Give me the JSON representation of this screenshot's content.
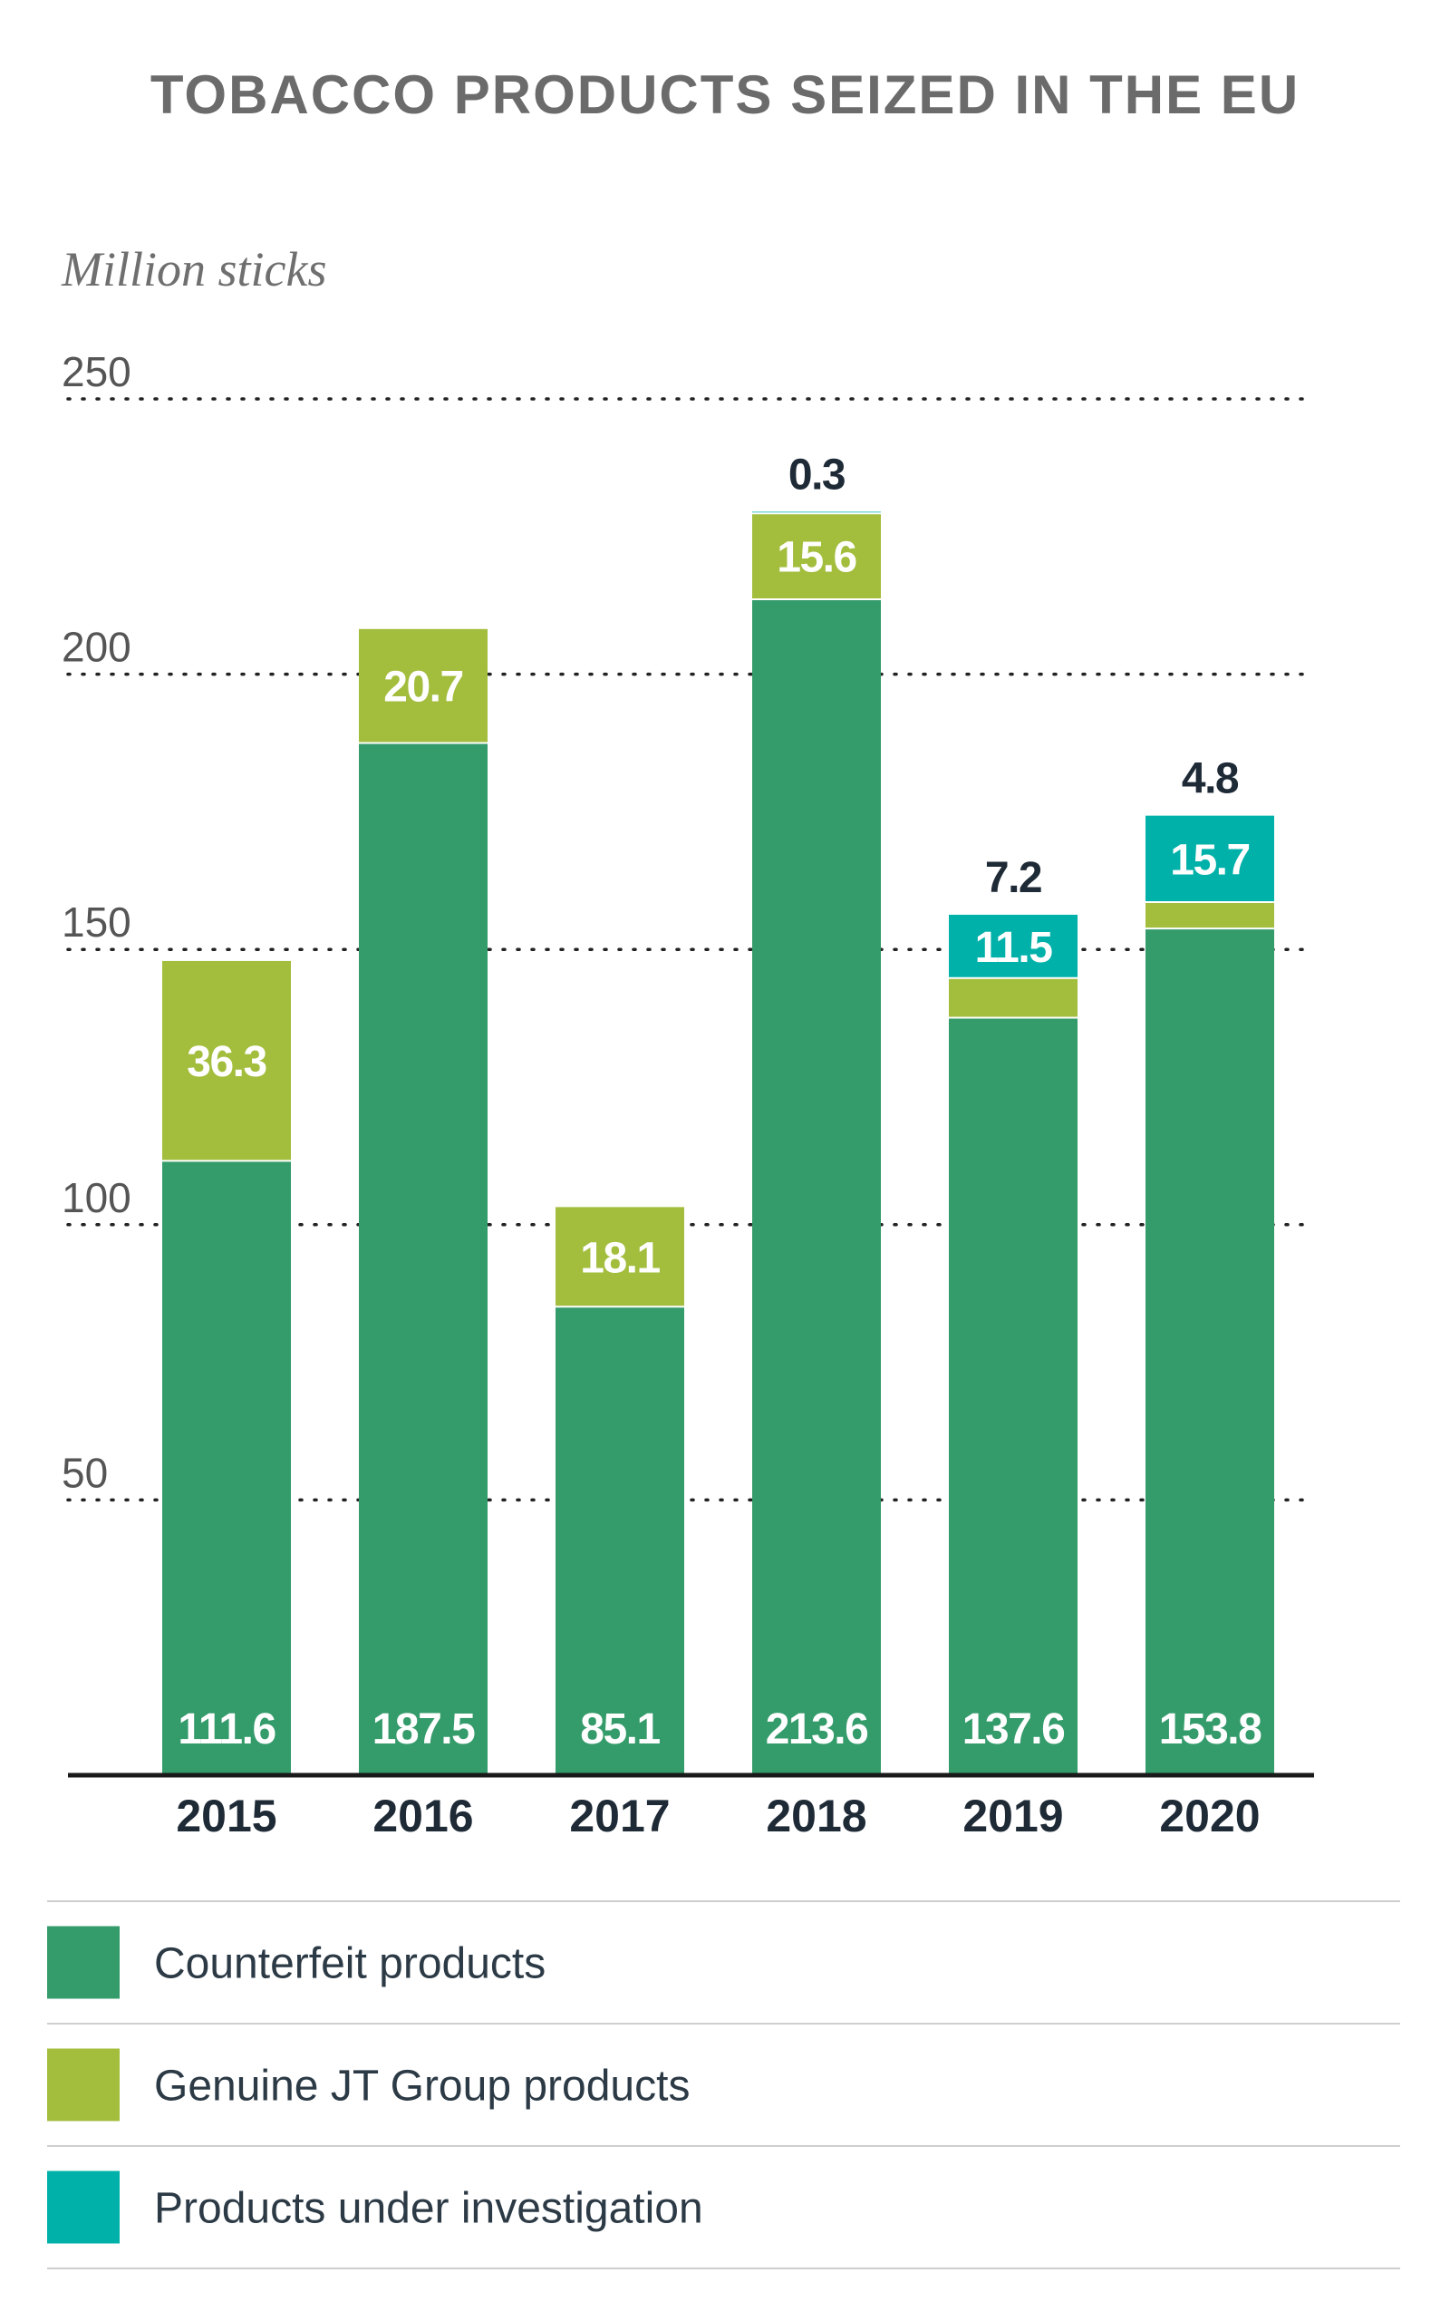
{
  "chart_data": {
    "type": "bar",
    "stacked": true,
    "title": "TOBACCO PRODUCTS SEIZED IN THE EU",
    "unit_label": "Million sticks",
    "categories": [
      "2015",
      "2016",
      "2017",
      "2018",
      "2019",
      "2020"
    ],
    "series": [
      {
        "name": "Counterfeit products",
        "color": "#349b6b",
        "values": [
          111.6,
          187.5,
          85.1,
          213.6,
          137.6,
          153.8
        ],
        "labels": [
          "111.6",
          "187.5",
          "85.1",
          "213.6",
          "137.6",
          "153.8"
        ]
      },
      {
        "name": "Genuine JT Group products",
        "color": "#a3bd3d",
        "values": [
          36.3,
          20.7,
          18.1,
          15.6,
          7.2,
          4.8
        ],
        "labels": [
          "36.3",
          "20.7",
          "18.1",
          "15.6",
          "7.2",
          "4.8"
        ]
      },
      {
        "name": "Products under investigation",
        "color": "#00b1a9",
        "values": [
          0,
          0,
          0,
          0.3,
          11.5,
          15.7
        ],
        "labels": [
          "",
          "",
          "",
          "0.3",
          "11.5",
          "15.7"
        ]
      }
    ],
    "yticks": [
      50,
      100,
      150,
      200,
      250
    ],
    "ylim": [
      0,
      250
    ],
    "grid": true,
    "legend_position": "bottom"
  }
}
